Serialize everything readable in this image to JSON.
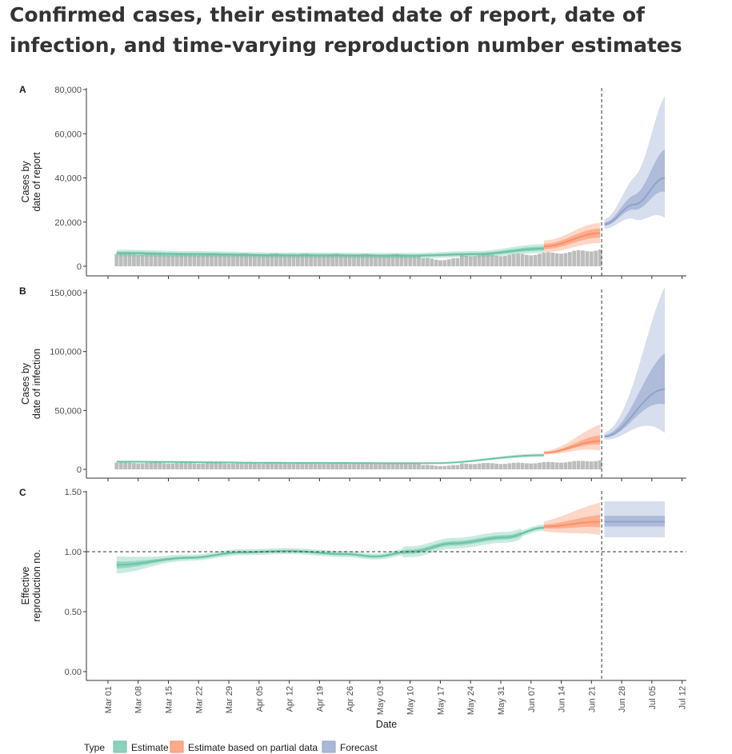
{
  "title": "Confirmed cases, their estimated date of report, date of infection, and time-varying reproduction number estimates",
  "colors": {
    "estimate": "#66c2a5",
    "partial": "#fc8d62",
    "forecast": "#8da0cb",
    "bars": "#bdbdbd",
    "axis": "#333333"
  },
  "chart_data": [
    {
      "panel": "A",
      "type": "area",
      "ylabel": [
        "Cases by",
        "date of report"
      ],
      "ylim": [
        0,
        80000
      ],
      "yticks": [
        0,
        20000,
        40000,
        60000,
        80000
      ],
      "ytick_labels": [
        "0",
        "20,000",
        "40,000",
        "60,000",
        "80,000"
      ],
      "xlabel": "",
      "observed": {
        "type": "bar",
        "start": "2020-03-03",
        "end": "2020-06-23",
        "values": "daily counts, ~5,500 through May, rising to ~14,000 by Jun 23"
      },
      "series": [
        {
          "name": "Estimate",
          "start": "2020-03-03",
          "end": "2020-06-10",
          "median": [
            [
              "2020-03-03",
              6000
            ],
            [
              "2020-03-20",
              5500
            ],
            [
              "2020-04-10",
              5000
            ],
            [
              "2020-05-10",
              4800
            ],
            [
              "2020-05-25",
              5500
            ],
            [
              "2020-06-10",
              8000
            ]
          ],
          "ci90_rel": [
            0.75,
            1.25
          ]
        },
        {
          "name": "Estimate based on partial data",
          "start": "2020-06-10",
          "end": "2020-06-23",
          "median": [
            [
              "2020-06-10",
              9000
            ],
            [
              "2020-06-23",
              15000
            ]
          ],
          "ci90_rel": [
            0.7,
            1.3
          ]
        },
        {
          "name": "Forecast",
          "start": "2020-06-24",
          "end": "2020-07-08",
          "median": [
            [
              "2020-06-24",
              19000
            ],
            [
              "2020-07-01",
              28000
            ],
            [
              "2020-07-08",
              40000
            ]
          ],
          "ci90_upper_end": 77000,
          "ci90_lower_end": 22000
        }
      ]
    },
    {
      "panel": "B",
      "type": "area",
      "ylabel": [
        "Cases by",
        "date of infection"
      ],
      "ylim": [
        0,
        160000
      ],
      "yticks": [
        0,
        50000,
        100000,
        150000
      ],
      "ytick_labels": [
        "0",
        "50,000",
        "100,000",
        "150,000"
      ],
      "xlabel": "",
      "observed": {
        "type": "bar",
        "start": "2020-03-03",
        "end": "2020-06-23",
        "values": "same daily counts as panel A"
      },
      "series": [
        {
          "name": "Estimate",
          "start": "2020-03-03",
          "end": "2020-06-10",
          "median": [
            [
              "2020-03-03",
              6500
            ],
            [
              "2020-04-15",
              5500
            ],
            [
              "2020-05-15",
              5200
            ],
            [
              "2020-06-10",
              12000
            ]
          ]
        },
        {
          "name": "Estimate based on partial data",
          "start": "2020-06-10",
          "end": "2020-06-23",
          "median": [
            [
              "2020-06-10",
              14000
            ],
            [
              "2020-06-23",
              24000
            ]
          ],
          "ci90_upper_end": 38000,
          "ci90_lower_end": 16000
        },
        {
          "name": "Forecast",
          "start": "2020-06-24",
          "end": "2020-07-08",
          "median": [
            [
              "2020-06-24",
              28000
            ],
            [
              "2020-07-08",
              68000
            ]
          ],
          "ci90_upper_end": 155000,
          "ci90_lower_end": 31000
        }
      ]
    },
    {
      "panel": "C",
      "type": "line",
      "ylabel": [
        "Effective",
        "reproduction no."
      ],
      "ylim": [
        0,
        1.5
      ],
      "yticks": [
        0,
        0.5,
        1.0,
        1.5
      ],
      "ytick_labels": [
        "0.00",
        "0.50",
        "1.00",
        "1.50"
      ],
      "xlabel": "Date",
      "reference_line": 1.0,
      "series": [
        {
          "name": "Estimate",
          "start": "2020-03-03",
          "end": "2020-06-10",
          "median": [
            [
              "2020-03-03",
              0.89
            ],
            [
              "2020-03-20",
              0.95
            ],
            [
              "2020-04-01",
              0.995
            ],
            [
              "2020-04-12",
              1.005
            ],
            [
              "2020-04-25",
              0.98
            ],
            [
              "2020-05-02",
              0.96
            ],
            [
              "2020-05-10",
              1.0
            ],
            [
              "2020-05-20",
              1.07
            ],
            [
              "2020-06-01",
              1.12
            ],
            [
              "2020-06-10",
              1.2
            ]
          ]
        },
        {
          "name": "Estimate based on partial data",
          "start": "2020-06-10",
          "end": "2020-06-23",
          "median": [
            [
              "2020-06-10",
              1.21
            ],
            [
              "2020-06-23",
              1.25
            ]
          ],
          "ci90": [
            1.13,
            1.42
          ]
        },
        {
          "name": "Forecast",
          "start": "2020-06-24",
          "end": "2020-07-08",
          "median": [
            [
              "2020-06-24",
              1.25
            ],
            [
              "2020-07-08",
              1.25
            ]
          ],
          "ci90": [
            1.12,
            1.42
          ],
          "ci50": [
            1.21,
            1.3
          ]
        }
      ]
    }
  ],
  "x_axis": {
    "range": [
      "2020-02-25",
      "2020-07-13"
    ],
    "ticks": [
      "2020-03-01",
      "2020-03-08",
      "2020-03-15",
      "2020-03-22",
      "2020-03-29",
      "2020-04-05",
      "2020-04-12",
      "2020-04-19",
      "2020-04-26",
      "2020-05-03",
      "2020-05-10",
      "2020-05-17",
      "2020-05-24",
      "2020-05-31",
      "2020-06-07",
      "2020-06-14",
      "2020-06-21",
      "2020-06-28",
      "2020-07-05",
      "2020-07-12"
    ],
    "tick_labels": [
      "Mar 01",
      "Mar 08",
      "Mar 15",
      "Mar 22",
      "Mar 29",
      "Apr 05",
      "Apr 12",
      "Apr 19",
      "Apr 26",
      "May 03",
      "May 10",
      "May 17",
      "May 24",
      "May 31",
      "Jun 07",
      "Jun 14",
      "Jun 21",
      "Jun 28",
      "Jul 05",
      "Jul 12"
    ],
    "cutoff_date": "2020-06-23"
  },
  "legend": {
    "title": "Type",
    "items": [
      "Estimate",
      "Estimate based on partial data",
      "Forecast"
    ],
    "placement": "bottom"
  }
}
